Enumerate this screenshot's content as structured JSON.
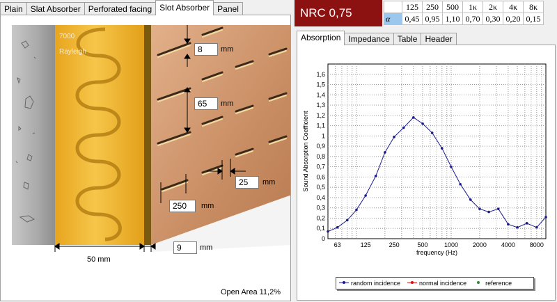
{
  "left_tabs": [
    "Plain",
    "Slat Absorber",
    "Perforated facing",
    "Slot Absorber",
    "Panel"
  ],
  "left_active_tab": 3,
  "brand": {
    "line1": "7000",
    "line2": "Rayleigh"
  },
  "dimensions": {
    "slot_height": {
      "value": "8",
      "unit": "mm"
    },
    "slot_spacing": {
      "value": "65",
      "unit": "mm"
    },
    "slot_gap": {
      "value": "25",
      "unit": "mm"
    },
    "slot_length": {
      "value": "250",
      "unit": "mm"
    },
    "facing_thickness": {
      "value": "9",
      "unit": "mm"
    },
    "cavity_depth": {
      "label": "50 mm"
    }
  },
  "open_area": "Open Area 11,2%",
  "nrc_label": "NRC 0,75",
  "freq_table": {
    "alpha_symbol": "α",
    "frequencies": [
      "125",
      "250",
      "500",
      "1κ",
      "2κ",
      "4κ",
      "8κ"
    ],
    "values": [
      "0,45",
      "0,95",
      "1,10",
      "0,70",
      "0,30",
      "0,20",
      "0,15"
    ]
  },
  "right_tabs": [
    "Absorption",
    "Impedance",
    "Table",
    "Header"
  ],
  "right_active_tab": 0,
  "colors": {
    "nrc_bg": "#8c1212",
    "series_random": "#1a1a8c",
    "series_normal": "#d01010",
    "series_reference": "#2e8b2e",
    "alpha_cell": "#9bc7ef"
  },
  "chart_data": {
    "type": "line",
    "xlabel": "frequency (Hz)",
    "ylabel": "Sound Absorption Coefficient",
    "xscale": "log",
    "xlim": [
      50,
      10000
    ],
    "ylim": [
      0,
      1.7
    ],
    "xticks": [
      63,
      125,
      250,
      500,
      1000,
      2000,
      4000,
      8000
    ],
    "xtick_labels": [
      "63",
      "125",
      "250",
      "500",
      "1000",
      "2000",
      "4000",
      "8000"
    ],
    "yticks": [
      0,
      0.1,
      0.2,
      0.3,
      0.4,
      0.5,
      0.6,
      0.7,
      0.8,
      0.9,
      1.0,
      1.1,
      1.2,
      1.3,
      1.4,
      1.5,
      1.6
    ],
    "ytick_labels": [
      "0",
      "0,1",
      "0,2",
      "0,3",
      "0,4",
      "0,5",
      "0,6",
      "0,7",
      "0,8",
      "0,9",
      "1",
      "1,1",
      "1,2",
      "1,3",
      "1,4",
      "1,5",
      "1,6"
    ],
    "grid": true,
    "legend_position": "bottom",
    "series": [
      {
        "name": "random incidence",
        "x": [
          50,
          63,
          80,
          100,
          125,
          160,
          200,
          250,
          315,
          400,
          500,
          630,
          800,
          1000,
          1250,
          1600,
          2000,
          2500,
          3150,
          4000,
          5000,
          6300,
          8000,
          10000
        ],
        "values": [
          0.07,
          0.11,
          0.18,
          0.28,
          0.42,
          0.61,
          0.84,
          0.99,
          1.08,
          1.18,
          1.12,
          1.03,
          0.88,
          0.7,
          0.53,
          0.38,
          0.29,
          0.26,
          0.29,
          0.14,
          0.11,
          0.15,
          0.11,
          0.21
        ]
      },
      {
        "name": "normal incidence",
        "x": [],
        "values": []
      },
      {
        "name": "reference",
        "x": [],
        "values": []
      }
    ]
  }
}
